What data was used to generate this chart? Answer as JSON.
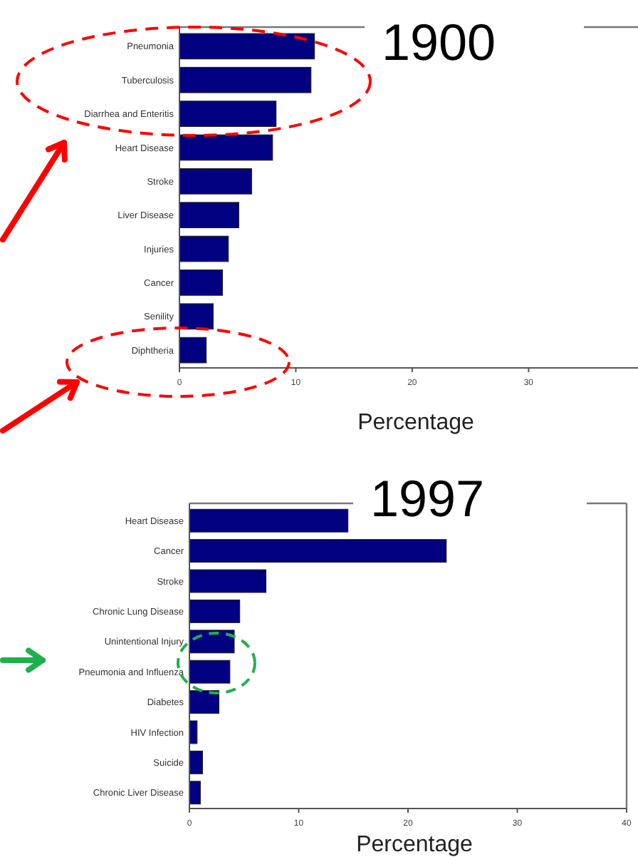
{
  "chart_data": [
    {
      "type": "bar",
      "orientation": "horizontal",
      "title": "1900",
      "xlabel": "Percentage",
      "categories": [
        "Pneumonia",
        "Tuberculosis",
        "Diarrhea and Enteritis",
        "Heart Disease",
        "Stroke",
        "Liver Disease",
        "Injuries",
        "Cancer",
        "Senility",
        "Diphtheria"
      ],
      "values": [
        11.6,
        11.3,
        8.3,
        8.0,
        6.2,
        5.1,
        4.2,
        3.7,
        2.9,
        2.3
      ],
      "color": "#000080",
      "xlim": [
        0,
        39.4
      ],
      "xticks": [
        0,
        10,
        20,
        30
      ]
    },
    {
      "type": "bar",
      "orientation": "horizontal",
      "title": "1997",
      "xlabel": "Percentage",
      "categories": [
        "Heart Disease",
        "Cancer",
        "Stroke",
        "Chronic Lung Disease",
        "Unintentional Injury",
        "Pneumonia and Influenza",
        "Diabetes",
        "HIV Infection",
        "Suicide",
        "Chronic Liver Disease"
      ],
      "values": [
        14.5,
        23.5,
        7.0,
        4.6,
        4.1,
        3.7,
        2.7,
        0.7,
        1.2,
        1.0
      ],
      "color": "#000080",
      "xlim": [
        0,
        40
      ],
      "xticks": [
        0,
        10,
        20,
        30,
        40
      ]
    }
  ]
}
